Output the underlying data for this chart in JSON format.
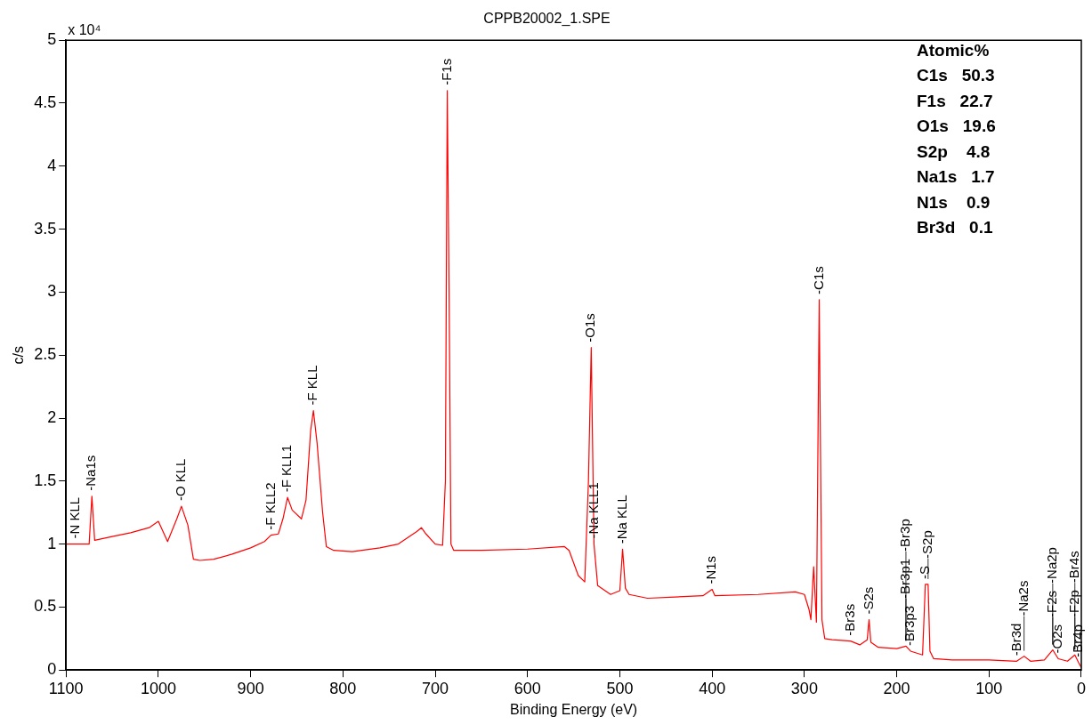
{
  "chart_data": {
    "type": "line",
    "title": "CPPB20002_1.SPE",
    "xlabel": "Binding Energy (eV)",
    "ylabel": "c/s",
    "xlim": [
      1100,
      0
    ],
    "xticks": [
      1100,
      1000,
      900,
      800,
      700,
      600,
      500,
      400,
      300,
      200,
      100,
      0
    ],
    "ylim": [
      0,
      5
    ],
    "yticks": [
      0,
      0.5,
      1,
      1.5,
      2,
      2.5,
      3,
      3.5,
      4,
      4.5,
      5
    ],
    "grid": false,
    "legend": false,
    "marker": "none",
    "line_style": "solid",
    "x": [
      1100,
      1090,
      1080,
      1075,
      1072,
      1069,
      1050,
      1030,
      1010,
      1000,
      990,
      980,
      975,
      968,
      962,
      955,
      940,
      920,
      900,
      885,
      878,
      870,
      865,
      860,
      855,
      845,
      840,
      835,
      832,
      828,
      822,
      818,
      810,
      790,
      760,
      740,
      720,
      715,
      710,
      700,
      692,
      689,
      687,
      685,
      683,
      680,
      650,
      600,
      560,
      555,
      545,
      538,
      534,
      531,
      528,
      524,
      510,
      500,
      497,
      494,
      490,
      470,
      440,
      410,
      400,
      397,
      350,
      310,
      300,
      295,
      293,
      290,
      287,
      284,
      281,
      278,
      270,
      250,
      240,
      232,
      230,
      228,
      220,
      200,
      190,
      185,
      172,
      169,
      166,
      164,
      160,
      140,
      100,
      70,
      62,
      55,
      40,
      31,
      25,
      15,
      7,
      3,
      0
    ],
    "series": [
      {
        "color": "#ff0000",
        "values": [
          1.0,
          1.0,
          1.0,
          1.0,
          1.38,
          1.03,
          1.06,
          1.09,
          1.13,
          1.18,
          1.02,
          1.2,
          1.3,
          1.15,
          0.88,
          0.87,
          0.88,
          0.92,
          0.97,
          1.02,
          1.07,
          1.08,
          1.2,
          1.37,
          1.27,
          1.2,
          1.35,
          1.9,
          2.06,
          1.8,
          1.25,
          0.98,
          0.95,
          0.94,
          0.97,
          1.0,
          1.1,
          1.13,
          1.08,
          1.0,
          0.99,
          1.5,
          4.6,
          3.0,
          1.0,
          0.95,
          0.95,
          0.96,
          0.98,
          0.95,
          0.75,
          0.7,
          1.5,
          2.56,
          1.0,
          0.67,
          0.6,
          0.63,
          0.96,
          0.65,
          0.6,
          0.57,
          0.58,
          0.59,
          0.64,
          0.59,
          0.6,
          0.62,
          0.6,
          0.48,
          0.4,
          0.82,
          0.38,
          2.94,
          0.4,
          0.25,
          0.24,
          0.23,
          0.2,
          0.24,
          0.4,
          0.22,
          0.18,
          0.17,
          0.19,
          0.15,
          0.12,
          0.68,
          0.68,
          0.15,
          0.09,
          0.08,
          0.08,
          0.07,
          0.11,
          0.07,
          0.08,
          0.16,
          0.09,
          0.07,
          0.12,
          0.06,
          0.02
        ]
      }
    ],
    "annotations": [
      "x 10⁴",
      "Atomic%",
      "C1s   50.3",
      "F1s   22.7",
      "O1s   19.6",
      "S2p    4.8",
      "Na1s   1.7",
      "N1s    0.9",
      "Br3d   0.1",
      {
        "text": "-N KLL",
        "x": 1090,
        "y": 1.0
      },
      {
        "text": "-Na1s",
        "x": 1072,
        "y": 1.38
      },
      {
        "text": "-O KLL",
        "x": 975,
        "y": 1.3
      },
      {
        "text": "-F KLL2",
        "x": 878,
        "y": 1.07
      },
      {
        "text": "-F KLL1",
        "x": 860,
        "y": 1.37
      },
      {
        "text": "-F KLL",
        "x": 832,
        "y": 2.06
      },
      {
        "text": "-F1s",
        "x": 687,
        "y": 4.6
      },
      {
        "text": "-O1s",
        "x": 531,
        "y": 2.56
      },
      {
        "text": "-Na KLL1",
        "x": 528,
        "y": 1.0
      },
      {
        "text": "-Na KLL",
        "x": 497,
        "y": 0.96
      },
      {
        "text": "-N1s",
        "x": 400,
        "y": 0.64
      },
      {
        "text": "-C1s",
        "x": 284,
        "y": 2.94
      },
      {
        "text": "-Br3s",
        "x": 250,
        "y": 0.23
      },
      {
        "text": "-S2s",
        "x": 230,
        "y": 0.4
      },
      {
        "text": "-Br3p3",
        "x": 185,
        "y": 0.15
      },
      {
        "text": "-Br3p1",
        "x": 190,
        "y": 0.19
      },
      {
        "text": "-Br3p",
        "x": 190,
        "y": 0.19
      },
      {
        "text": "-S",
        "x": 169,
        "y": 0.68
      },
      {
        "text": "-S2p",
        "x": 166,
        "y": 0.68
      },
      {
        "text": "-Br3d",
        "x": 70,
        "y": 0.07
      },
      {
        "text": "-Na2s",
        "x": 62,
        "y": 0.11
      },
      {
        "text": "-O2s",
        "x": 25,
        "y": 0.09
      },
      {
        "text": "-F2s",
        "x": 31,
        "y": 0.16
      },
      {
        "text": "-Na2p",
        "x": 31,
        "y": 0.16
      },
      {
        "text": "-Br4p",
        "x": 3,
        "y": 0.06
      },
      {
        "text": "-F2p",
        "x": 7,
        "y": 0.12
      },
      {
        "text": "-Br4s",
        "x": 7,
        "y": 0.12
      }
    ]
  }
}
